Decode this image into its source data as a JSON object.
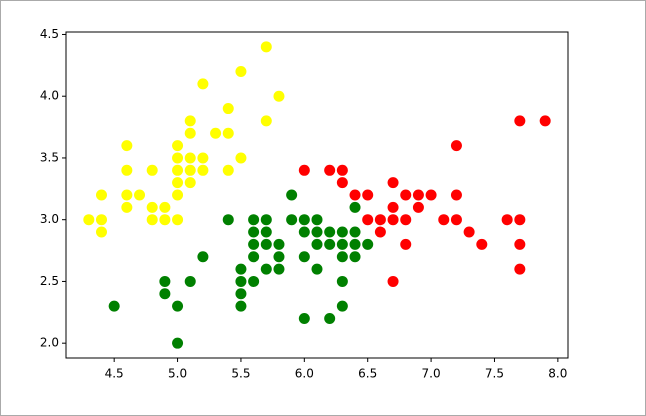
{
  "chart_data": {
    "type": "scatter",
    "xlim": [
      4.12,
      8.08
    ],
    "ylim": [
      1.88,
      4.52
    ],
    "xticks": [
      4.5,
      {
        "value": 5.0,
        "label": "5.0"
      },
      5.5,
      {
        "value": 6.0,
        "label": "6.0"
      },
      6.5,
      {
        "value": 7.0,
        "label": "7.0"
      },
      7.5,
      {
        "value": 8.0,
        "label": "8.0"
      }
    ],
    "yticks": [
      {
        "value": 2.0,
        "label": "2.0"
      },
      2.5,
      {
        "value": 3.0,
        "label": "3.0"
      },
      3.5,
      {
        "value": 4.0,
        "label": "4.0"
      },
      4.5
    ],
    "series": [
      {
        "color": "yellow",
        "x": [
          4.3,
          4.4,
          4.4,
          4.4,
          4.6,
          4.6,
          4.6,
          4.6,
          4.7,
          4.8,
          4.8,
          4.8,
          4.9,
          4.9,
          5.0,
          5.0,
          5.0,
          5.0,
          5.0,
          5.0,
          5.1,
          5.1,
          5.1,
          5.1,
          5.1,
          5.2,
          5.2,
          5.2,
          5.3,
          5.4,
          5.4,
          5.4,
          5.5,
          5.5,
          5.7,
          5.7,
          5.8
        ],
        "values": [
          3.0,
          2.9,
          3.0,
          3.2,
          3.1,
          3.2,
          3.4,
          3.6,
          3.2,
          3.0,
          3.1,
          3.4,
          3.0,
          3.1,
          3.0,
          3.2,
          3.3,
          3.4,
          3.5,
          3.6,
          3.3,
          3.4,
          3.5,
          3.7,
          3.8,
          3.4,
          3.5,
          4.1,
          3.7,
          3.4,
          3.7,
          3.9,
          3.5,
          4.2,
          3.8,
          4.4,
          4.0
        ]
      },
      {
        "color": "green",
        "x": [
          4.5,
          4.9,
          4.9,
          5.0,
          5.0,
          5.1,
          5.2,
          5.4,
          5.5,
          5.5,
          5.5,
          5.5,
          5.6,
          5.6,
          5.6,
          5.6,
          5.6,
          5.7,
          5.7,
          5.7,
          5.7,
          5.8,
          5.8,
          5.8,
          5.9,
          5.9,
          6.0,
          6.0,
          6.0,
          6.0,
          6.1,
          6.1,
          6.1,
          6.1,
          6.2,
          6.2,
          6.2,
          6.3,
          6.3,
          6.3,
          6.3,
          6.3,
          6.4,
          6.4,
          6.4,
          6.4,
          6.5
        ],
        "values": [
          2.3,
          2.4,
          2.5,
          2.0,
          2.3,
          2.5,
          2.7,
          3.0,
          2.3,
          2.4,
          2.5,
          2.6,
          2.5,
          2.7,
          2.8,
          2.9,
          3.0,
          2.6,
          2.8,
          2.9,
          3.0,
          2.6,
          2.7,
          2.8,
          3.0,
          3.2,
          2.2,
          2.7,
          2.9,
          3.0,
          2.6,
          2.8,
          2.9,
          3.0,
          2.2,
          2.8,
          2.9,
          2.3,
          2.5,
          2.7,
          2.8,
          2.9,
          2.7,
          2.8,
          2.9,
          3.1,
          2.8
        ]
      },
      {
        "color": "red",
        "x": [
          6.0,
          6.2,
          6.3,
          6.3,
          6.4,
          6.5,
          6.5,
          6.6,
          6.6,
          6.7,
          6.7,
          6.7,
          6.7,
          6.8,
          6.8,
          6.8,
          6.9,
          6.9,
          7.0,
          7.1,
          7.2,
          7.2,
          7.2,
          7.3,
          7.4,
          7.6,
          7.7,
          7.7,
          7.7,
          7.7,
          7.9
        ],
        "values": [
          3.4,
          3.4,
          3.3,
          3.4,
          3.2,
          3.0,
          3.2,
          2.9,
          3.0,
          2.5,
          3.0,
          3.1,
          3.3,
          2.8,
          3.0,
          3.2,
          3.1,
          3.2,
          3.2,
          3.0,
          3.0,
          3.2,
          3.6,
          2.9,
          2.8,
          3.0,
          2.6,
          2.8,
          3.0,
          3.8,
          3.8
        ]
      }
    ]
  }
}
